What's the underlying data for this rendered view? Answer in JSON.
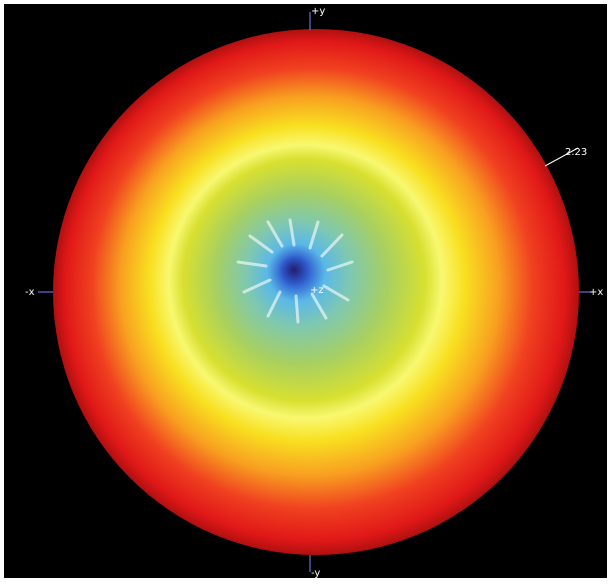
{
  "axes": {
    "top": "+y",
    "bottom": "-y",
    "left": "-x",
    "right": "+x",
    "center": "+z"
  },
  "annotation": "2.23"
}
